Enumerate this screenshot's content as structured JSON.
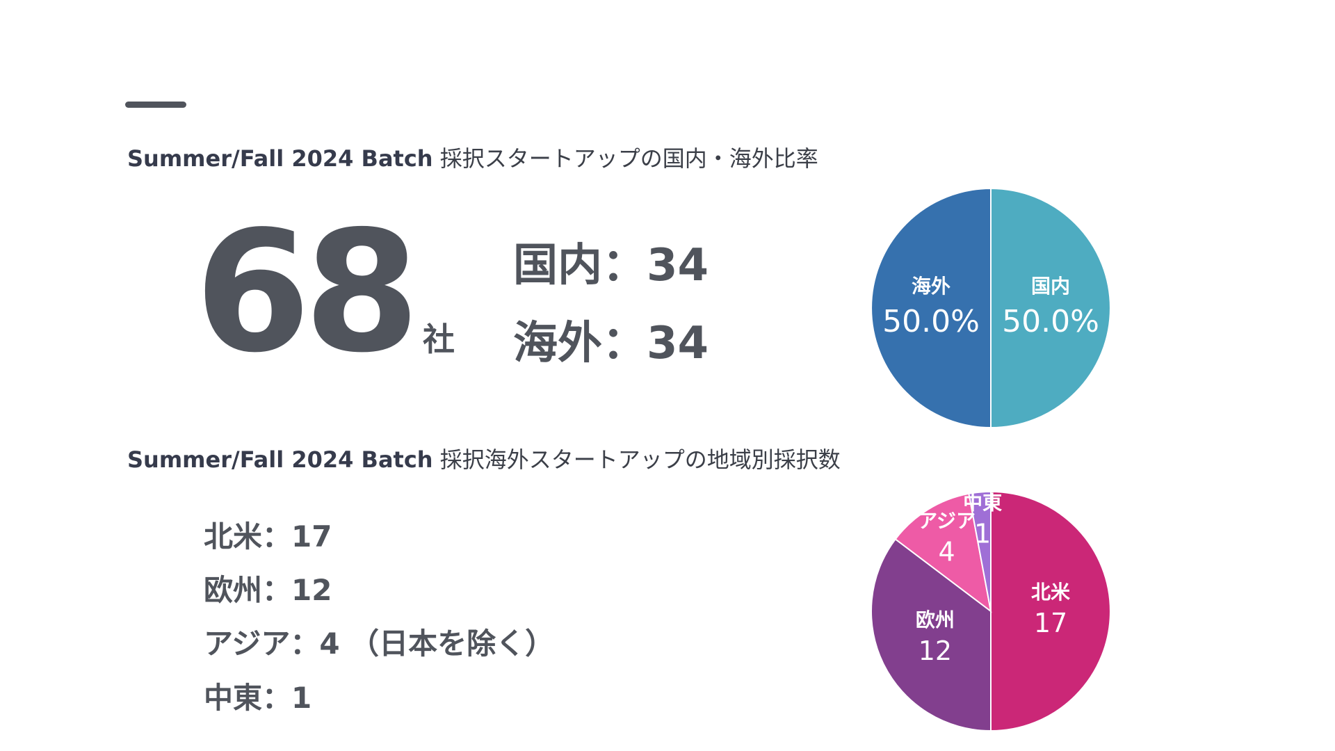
{
  "heading1": {
    "bold": "Summer/Fall 2024 Batch",
    "rest": "採択スタートアップの国内・海外比率"
  },
  "heading2": {
    "bold": "Summer/Fall 2024 Batch",
    "rest": "採択海外スタートアップの地域別採択数"
  },
  "total": {
    "number": "68",
    "unit": "社"
  },
  "ratio_lines": {
    "domestic": "国内：34",
    "overseas": "海外：34"
  },
  "region_lines": [
    "北米：17",
    "欧州：12",
    "アジア：4 （日本を除く）",
    "中東：1"
  ],
  "colors": {
    "domestic": "#4eacc1",
    "overseas": "#3671ae",
    "north_america": "#cb2777",
    "europe": "#823f8e",
    "asia": "#ee5ba6",
    "middle_east": "#9f6fd6"
  },
  "chart_data": [
    {
      "type": "pie",
      "labels": [
        "国内",
        "海外"
      ],
      "values": [
        34,
        34
      ],
      "value_labels": [
        "50.0%",
        "50.0%"
      ],
      "colors": [
        "#4eacc1",
        "#3671ae"
      ],
      "start_angle_deg": 0,
      "direction": "clockwise"
    },
    {
      "type": "pie",
      "labels": [
        "北米",
        "欧州",
        "アジア",
        "中東"
      ],
      "values": [
        17,
        12,
        4,
        1
      ],
      "value_labels": [
        "17",
        "12",
        "4",
        "1"
      ],
      "colors": [
        "#cb2777",
        "#823f8e",
        "#ee5ba6",
        "#9f6fd6"
      ],
      "start_angle_deg": 0,
      "direction": "clockwise"
    }
  ]
}
